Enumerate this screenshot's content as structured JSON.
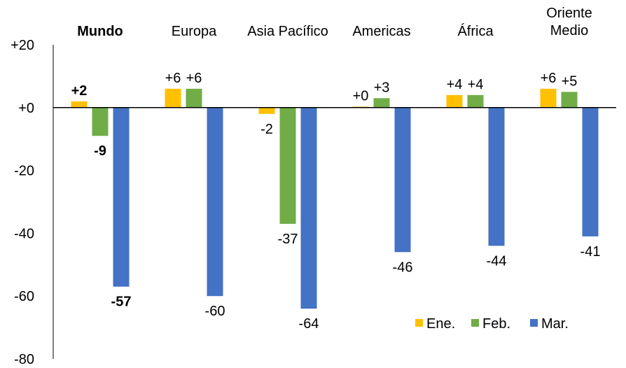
{
  "chart_data": {
    "type": "bar",
    "categories": [
      {
        "lines": [
          "Mundo"
        ],
        "bold": true
      },
      {
        "lines": [
          "Europa"
        ],
        "bold": false
      },
      {
        "lines": [
          "Asia Pacífico"
        ],
        "bold": false
      },
      {
        "lines": [
          "Americas"
        ],
        "bold": false
      },
      {
        "lines": [
          "África"
        ],
        "bold": false
      },
      {
        "lines": [
          "Oriente",
          "Medio"
        ],
        "bold": false
      }
    ],
    "series": [
      {
        "name": "Ene.",
        "color": "#FFC000",
        "values": [
          2,
          6,
          -2,
          0.3,
          4,
          6
        ],
        "labels": [
          "+2",
          "+6",
          "-2",
          "+0",
          "+4",
          "+6"
        ]
      },
      {
        "name": "Feb.",
        "color": "#70AD47",
        "values": [
          -9,
          6,
          -37,
          3,
          4,
          5
        ],
        "labels": [
          "-9",
          "+6",
          "-37",
          "+3",
          "+4",
          "+5"
        ]
      },
      {
        "name": "Mar.",
        "color": "#4472C4",
        "values": [
          -57,
          -60,
          -64,
          -46,
          -44,
          -41
        ],
        "labels": [
          "-57",
          "-60",
          "-64",
          "-46",
          "-44",
          "-41"
        ]
      }
    ],
    "yticks": [
      "+20",
      "+0",
      "-20",
      "-40",
      "-60",
      "-80"
    ],
    "ylim": [
      -80,
      20
    ],
    "grid": false,
    "legend": "bottom-right"
  }
}
